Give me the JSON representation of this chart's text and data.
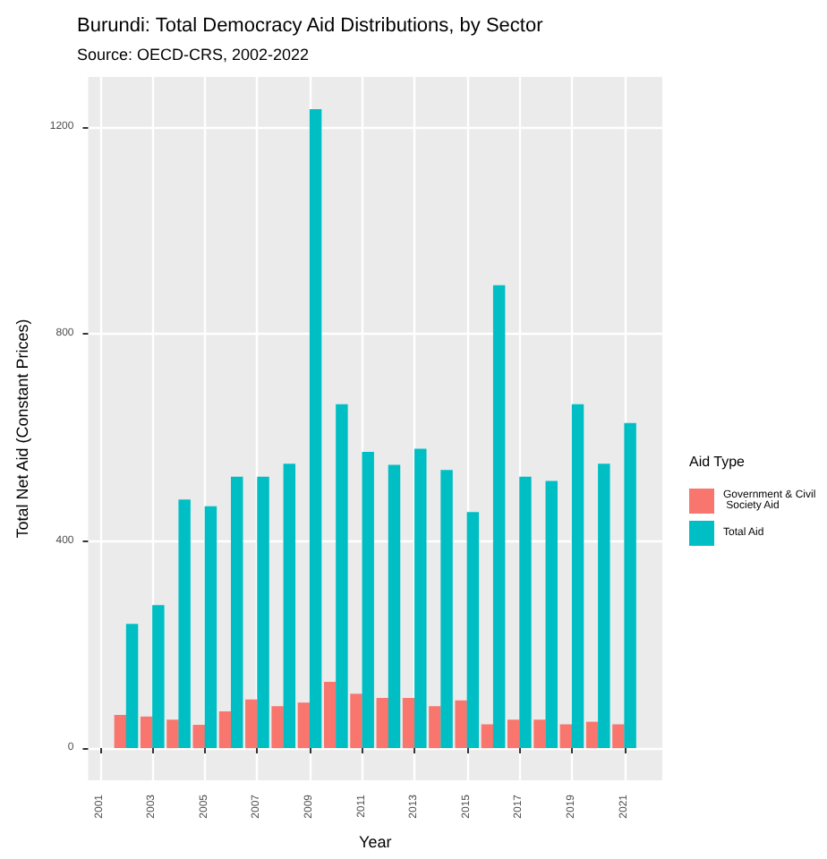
{
  "chart_data": {
    "type": "bar",
    "title": "Burundi: Total Democracy Aid Distributions, by Sector",
    "subtitle": "Source: OECD-CRS, 2002-2022",
    "xlabel": "Year",
    "ylabel": "Total Net Aid (Constant Prices)",
    "legend_title": "Aid Type",
    "x": [
      2002,
      2003,
      2004,
      2005,
      2006,
      2007,
      2008,
      2009,
      2010,
      2011,
      2012,
      2013,
      2014,
      2015,
      2016,
      2017,
      2018,
      2019,
      2020,
      2021
    ],
    "series": [
      {
        "name": "Government & Civil Society Aid",
        "color": "#f8766d",
        "values": [
          64,
          61,
          55,
          45,
          71,
          94,
          81,
          88,
          128,
          105,
          97,
          97,
          81,
          92,
          46,
          55,
          55,
          46,
          51,
          46
        ]
      },
      {
        "name": "Total Aid",
        "color": "#00bfc4",
        "values": [
          240,
          276,
          480,
          467,
          524,
          524,
          549,
          1234,
          664,
          572,
          547,
          578,
          537,
          456,
          894,
          524,
          516,
          664,
          549,
          628
        ]
      }
    ],
    "xlim": [
      2000.55,
      2022.45
    ],
    "xticks": [
      2001,
      2003,
      2005,
      2007,
      2009,
      2011,
      2013,
      2015,
      2017,
      2019,
      2021
    ],
    "ylim": [
      -62,
      1296
    ],
    "yticks": [
      0,
      400,
      800,
      1200
    ],
    "grid": true,
    "legend": "right"
  }
}
